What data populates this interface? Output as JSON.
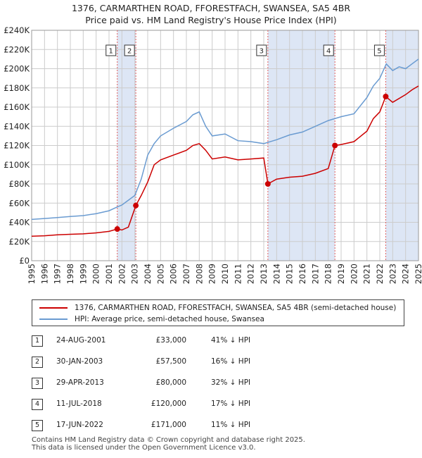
{
  "title_line1": "1376, CARMARTHEN ROAD, FFORESTFACH, SWANSEA, SA5 4BR",
  "title_line2": "Price paid vs. HM Land Registry's House Price Index (HPI)",
  "legend": {
    "property_label": "1376, CARMARTHEN ROAD, FFORESTFACH, SWANSEA, SA5 4BR (semi-detached house)",
    "hpi_label": "HPI: Average price, semi-detached house, Swansea"
  },
  "colors": {
    "property": "#cc0000",
    "hpi": "#6a9bd1",
    "shade": "#dde6f5",
    "grid": "#cccccc"
  },
  "chart_data": {
    "type": "line",
    "xlim": [
      1995,
      2025
    ],
    "ylim": [
      0,
      240000
    ],
    "x_ticks": [
      "1995",
      "1996",
      "1997",
      "1998",
      "1999",
      "2000",
      "2001",
      "2002",
      "2003",
      "2004",
      "2005",
      "2006",
      "2007",
      "2008",
      "2009",
      "2010",
      "2011",
      "2012",
      "2013",
      "2014",
      "2015",
      "2016",
      "2017",
      "2018",
      "2019",
      "2020",
      "2021",
      "2022",
      "2023",
      "2024",
      "2025"
    ],
    "y_ticks": [
      "£0",
      "£20K",
      "£40K",
      "£60K",
      "£80K",
      "£100K",
      "£120K",
      "£140K",
      "£160K",
      "£180K",
      "£200K",
      "£220K",
      "£240K"
    ],
    "series": [
      {
        "name": "1376, CARMARTHEN ROAD, FFORESTFACH, SWANSEA, SA5 4BR (semi-detached house)",
        "x": [
          1995.0,
          1996.0,
          1997.0,
          1998.0,
          1999.0,
          2000.0,
          2001.0,
          2001.64,
          2002.0,
          2002.5,
          2003.08,
          2003.5,
          2004.0,
          2004.5,
          2005.0,
          2006.0,
          2007.0,
          2007.5,
          2008.0,
          2008.5,
          2009.0,
          2010.0,
          2011.0,
          2012.0,
          2013.0,
          2013.32,
          2014.0,
          2015.0,
          2016.0,
          2017.0,
          2018.0,
          2018.52,
          2019.0,
          2020.0,
          2021.0,
          2021.5,
          2022.0,
          2022.46,
          2023.0,
          2024.0,
          2024.5,
          2025.0
        ],
        "y": [
          25500,
          26000,
          27000,
          27500,
          28000,
          29000,
          30500,
          33000,
          32000,
          35000,
          57500,
          68000,
          82000,
          100000,
          105000,
          110000,
          115000,
          120000,
          122000,
          115000,
          106000,
          108000,
          105000,
          106000,
          107000,
          80000,
          85000,
          87000,
          88000,
          91000,
          96000,
          120000,
          121000,
          124000,
          135000,
          148000,
          155000,
          171000,
          165000,
          173000,
          178000,
          182000
        ]
      },
      {
        "name": "HPI: Average price, semi-detached house, Swansea",
        "x": [
          1995.0,
          1996.0,
          1997.0,
          1998.0,
          1999.0,
          2000.0,
          2001.0,
          2001.64,
          2002.0,
          2003.0,
          2003.5,
          2004.0,
          2004.5,
          2005.0,
          2006.0,
          2007.0,
          2007.5,
          2008.0,
          2008.5,
          2009.0,
          2010.0,
          2011.0,
          2012.0,
          2013.0,
          2014.0,
          2015.0,
          2016.0,
          2017.0,
          2018.0,
          2019.0,
          2020.0,
          2021.0,
          2021.5,
          2022.0,
          2022.5,
          2023.0,
          2023.5,
          2024.0,
          2024.5,
          2025.0
        ],
        "y": [
          43000,
          44000,
          45000,
          46000,
          47000,
          49000,
          52000,
          56000,
          58000,
          68000,
          85000,
          110000,
          122000,
          130000,
          138000,
          145000,
          152000,
          155000,
          140000,
          130000,
          132000,
          125000,
          124000,
          122000,
          126000,
          131000,
          134000,
          140000,
          146000,
          150000,
          153000,
          170000,
          182000,
          190000,
          205000,
          198000,
          202000,
          200000,
          205000,
          210000
        ]
      }
    ],
    "sales": [
      {
        "label": "1",
        "x": 2001.64,
        "y": 33000
      },
      {
        "label": "2",
        "x": 2003.08,
        "y": 57500
      },
      {
        "label": "3",
        "x": 2013.32,
        "y": 80000
      },
      {
        "label": "4",
        "x": 2018.52,
        "y": 120000
      },
      {
        "label": "5",
        "x": 2022.46,
        "y": 171000
      }
    ]
  },
  "transactions": [
    {
      "num": "1",
      "date": "24-AUG-2001",
      "price": "£33,000",
      "hpi": "41% ↓ HPI"
    },
    {
      "num": "2",
      "date": "30-JAN-2003",
      "price": "£57,500",
      "hpi": "16% ↓ HPI"
    },
    {
      "num": "3",
      "date": "29-APR-2013",
      "price": "£80,000",
      "hpi": "32% ↓ HPI"
    },
    {
      "num": "4",
      "date": "11-JUL-2018",
      "price": "£120,000",
      "hpi": "17% ↓ HPI"
    },
    {
      "num": "5",
      "date": "17-JUN-2022",
      "price": "£171,000",
      "hpi": "11% ↓ HPI"
    }
  ],
  "footer_line1": "Contains HM Land Registry data © Crown copyright and database right 2025.",
  "footer_line2": "This data is licensed under the Open Government Licence v3.0."
}
